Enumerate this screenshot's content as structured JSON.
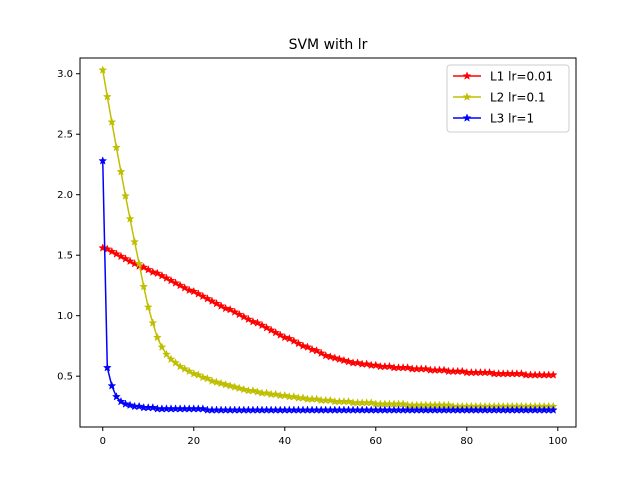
{
  "chart_data": {
    "type": "line",
    "title": "SVM with lr",
    "xlabel": "",
    "ylabel": "",
    "xlim": [
      -5,
      104
    ],
    "ylim": [
      0.08,
      3.13
    ],
    "x_ticks": [
      0,
      20,
      40,
      60,
      80,
      100
    ],
    "x_tick_labels": [
      "0",
      "20",
      "40",
      "60",
      "80",
      "100"
    ],
    "y_ticks": [
      0.5,
      1.0,
      1.5,
      2.0,
      2.5,
      3.0
    ],
    "y_tick_labels": [
      "0.5",
      "1.0",
      "1.5",
      "2.0",
      "2.5",
      "3.0"
    ],
    "grid": false,
    "legend_position": "top-right",
    "marker": "star",
    "x": [
      0,
      1,
      2,
      3,
      4,
      5,
      6,
      7,
      8,
      9,
      10,
      11,
      12,
      13,
      14,
      15,
      16,
      17,
      18,
      19,
      20,
      21,
      22,
      23,
      24,
      25,
      26,
      27,
      28,
      29,
      30,
      31,
      32,
      33,
      34,
      35,
      36,
      37,
      38,
      39,
      40,
      41,
      42,
      43,
      44,
      45,
      46,
      47,
      48,
      49,
      50,
      51,
      52,
      53,
      54,
      55,
      56,
      57,
      58,
      59,
      60,
      61,
      62,
      63,
      64,
      65,
      66,
      67,
      68,
      69,
      70,
      71,
      72,
      73,
      74,
      75,
      76,
      77,
      78,
      79,
      80,
      81,
      82,
      83,
      84,
      85,
      86,
      87,
      88,
      89,
      90,
      91,
      92,
      93,
      94,
      95,
      96,
      97,
      98,
      99
    ],
    "series": [
      {
        "name": "L1 lr=0.01",
        "color": "#ff0000",
        "values": [
          1.56,
          1.55,
          1.53,
          1.51,
          1.49,
          1.47,
          1.45,
          1.43,
          1.41,
          1.4,
          1.38,
          1.36,
          1.35,
          1.33,
          1.31,
          1.29,
          1.27,
          1.25,
          1.23,
          1.21,
          1.2,
          1.18,
          1.16,
          1.14,
          1.12,
          1.1,
          1.08,
          1.06,
          1.05,
          1.03,
          1.01,
          0.99,
          0.97,
          0.95,
          0.94,
          0.92,
          0.9,
          0.88,
          0.86,
          0.84,
          0.82,
          0.81,
          0.79,
          0.77,
          0.75,
          0.74,
          0.72,
          0.71,
          0.69,
          0.67,
          0.66,
          0.65,
          0.64,
          0.63,
          0.62,
          0.61,
          0.61,
          0.6,
          0.6,
          0.59,
          0.59,
          0.58,
          0.58,
          0.58,
          0.57,
          0.57,
          0.57,
          0.57,
          0.56,
          0.56,
          0.56,
          0.56,
          0.55,
          0.55,
          0.55,
          0.55,
          0.54,
          0.54,
          0.54,
          0.54,
          0.53,
          0.53,
          0.53,
          0.53,
          0.53,
          0.53,
          0.52,
          0.52,
          0.52,
          0.52,
          0.52,
          0.52,
          0.52,
          0.51,
          0.51,
          0.51,
          0.51,
          0.51,
          0.51,
          0.51
        ]
      },
      {
        "name": "L2 lr=0.1",
        "color": "#bfbf00",
        "values": [
          3.03,
          2.81,
          2.6,
          2.39,
          2.19,
          1.99,
          1.8,
          1.61,
          1.43,
          1.24,
          1.07,
          0.94,
          0.82,
          0.74,
          0.68,
          0.64,
          0.61,
          0.58,
          0.56,
          0.54,
          0.52,
          0.51,
          0.49,
          0.48,
          0.46,
          0.45,
          0.44,
          0.43,
          0.42,
          0.41,
          0.4,
          0.39,
          0.38,
          0.38,
          0.37,
          0.36,
          0.36,
          0.35,
          0.35,
          0.34,
          0.34,
          0.33,
          0.33,
          0.32,
          0.32,
          0.31,
          0.31,
          0.31,
          0.3,
          0.3,
          0.3,
          0.29,
          0.29,
          0.29,
          0.29,
          0.28,
          0.28,
          0.28,
          0.28,
          0.28,
          0.27,
          0.27,
          0.27,
          0.27,
          0.27,
          0.27,
          0.27,
          0.26,
          0.26,
          0.26,
          0.26,
          0.26,
          0.26,
          0.26,
          0.26,
          0.26,
          0.26,
          0.25,
          0.25,
          0.25,
          0.25,
          0.25,
          0.25,
          0.25,
          0.25,
          0.25,
          0.25,
          0.25,
          0.25,
          0.25,
          0.25,
          0.25,
          0.25,
          0.25,
          0.25,
          0.25,
          0.25,
          0.25,
          0.25,
          0.25
        ]
      },
      {
        "name": "L3 lr=1",
        "color": "#0000ff",
        "values": [
          2.28,
          0.57,
          0.42,
          0.33,
          0.29,
          0.27,
          0.26,
          0.25,
          0.25,
          0.24,
          0.24,
          0.24,
          0.23,
          0.23,
          0.23,
          0.23,
          0.23,
          0.23,
          0.23,
          0.23,
          0.23,
          0.23,
          0.23,
          0.22,
          0.22,
          0.22,
          0.22,
          0.22,
          0.22,
          0.22,
          0.22,
          0.22,
          0.22,
          0.22,
          0.22,
          0.22,
          0.22,
          0.22,
          0.22,
          0.22,
          0.22,
          0.22,
          0.22,
          0.22,
          0.22,
          0.22,
          0.22,
          0.22,
          0.22,
          0.22,
          0.22,
          0.22,
          0.22,
          0.22,
          0.22,
          0.22,
          0.22,
          0.22,
          0.22,
          0.22,
          0.22,
          0.22,
          0.22,
          0.22,
          0.22,
          0.22,
          0.22,
          0.22,
          0.22,
          0.22,
          0.22,
          0.22,
          0.22,
          0.22,
          0.22,
          0.22,
          0.22,
          0.22,
          0.22,
          0.22,
          0.22,
          0.22,
          0.22,
          0.22,
          0.22,
          0.22,
          0.22,
          0.22,
          0.22,
          0.22,
          0.22,
          0.22,
          0.22,
          0.22,
          0.22,
          0.22,
          0.22,
          0.22,
          0.22,
          0.22
        ]
      }
    ]
  }
}
